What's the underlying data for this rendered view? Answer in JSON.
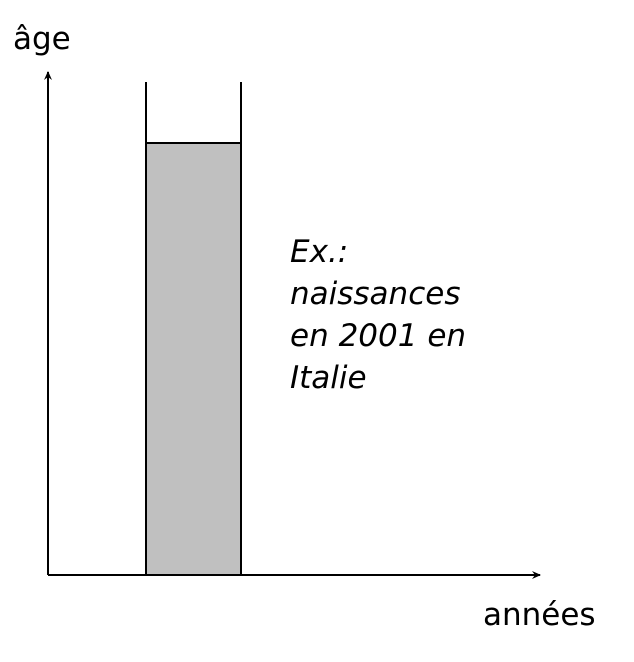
{
  "diagram": {
    "y_axis_label": "âge",
    "x_axis_label": "années",
    "annotation_lines": [
      "Ex.:",
      "naissances",
      "en 2001 en",
      "Italie"
    ],
    "colors": {
      "background": "#ffffff",
      "axis": "#000000",
      "cohort_fill": "#c0c0c0",
      "cohort_border": "#000000"
    }
  }
}
